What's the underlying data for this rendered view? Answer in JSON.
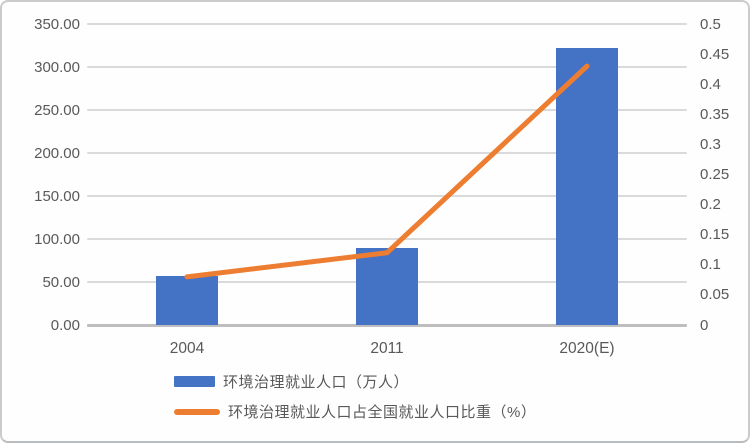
{
  "chart_data": {
    "type": "bar",
    "subtype": "combo-bar-line-dual-axis",
    "title": "",
    "categories": [
      "2004",
      "2011",
      "2020(E)"
    ],
    "series": [
      {
        "name": "环境治理就业人口（万人）",
        "type": "bar",
        "axis": "left",
        "color": "#4472C4",
        "values": [
          57,
          90,
          322
        ]
      },
      {
        "name": "环境治理就业人口占全国就业人口比重（%）",
        "type": "line",
        "axis": "right",
        "color": "#ED7D31",
        "values": [
          0.08,
          0.12,
          0.43
        ]
      }
    ],
    "left_axis": {
      "min": 0,
      "max": 350,
      "tick_values": [
        350,
        300,
        250,
        200,
        150,
        100,
        50,
        0
      ],
      "tick_labels": [
        "350.00",
        "300.00",
        "250.00",
        "200.00",
        "150.00",
        "100.00",
        "50.00",
        "0.00"
      ]
    },
    "right_axis": {
      "min": 0,
      "max": 0.5,
      "tick_values": [
        0.5,
        0.45,
        0.4,
        0.35,
        0.3,
        0.25,
        0.2,
        0.15,
        0.1,
        0.05,
        0
      ],
      "tick_labels": [
        "0.5",
        "0.45",
        "0.4",
        "0.35",
        "0.3",
        "0.25",
        "0.2",
        "0.15",
        "0.1",
        "0.05",
        "0"
      ]
    },
    "grid": true,
    "legend_position": "bottom-left"
  },
  "colors": {
    "bar_blue": "#4472C4",
    "line_orange": "#ED7D31",
    "gridline": "#DADADA",
    "axis_baseline": "#BEBEBE",
    "text": "#595959",
    "frame_border": "#CBCBCB",
    "background": "#FEFEFE"
  }
}
